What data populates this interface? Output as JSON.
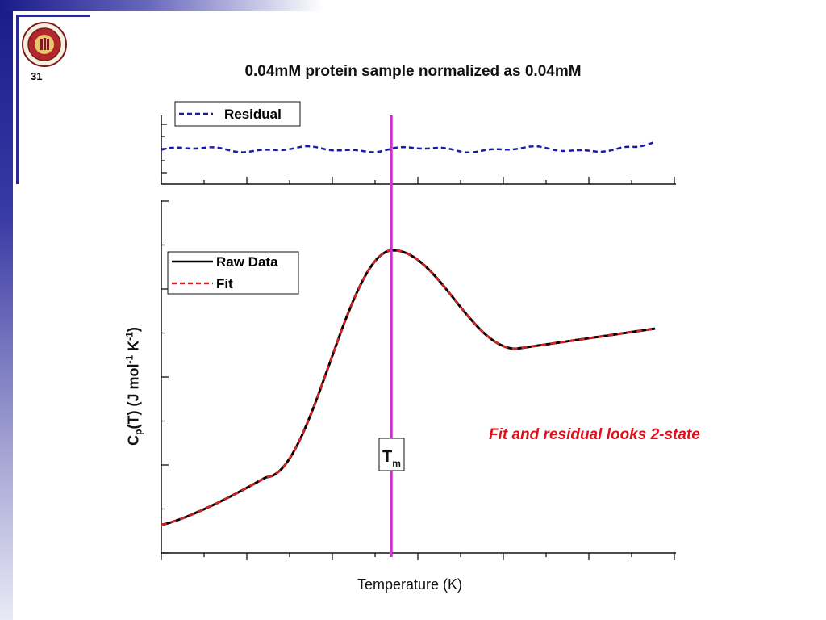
{
  "slide": {
    "number": "31",
    "note": "Fit and residual looks 2-state"
  },
  "colors": {
    "raw": "#000000",
    "fit": "#e02020",
    "residual": "#1a1aa8",
    "tm_line": "#cc33cc",
    "accent": "#2a2a90"
  },
  "chart_data": [
    {
      "type": "line",
      "panel": "top",
      "title": "0.04mM protein sample normalized as 0.04mM",
      "legend": {
        "placement": "top-left"
      },
      "series": [
        {
          "name": "Residual",
          "style": "dashed",
          "color": "#1a1aa8"
        }
      ]
    },
    {
      "type": "line",
      "panel": "main",
      "xlabel": "Temperature (K)",
      "ylabel": {
        "prefix": "C",
        "sub": "p",
        "middle": "(T) (J mol",
        "sup1": "-1",
        "mid2": " K",
        "sup2": "-1",
        "suffix": ")"
      },
      "legend": {
        "placement": "top-left"
      },
      "series": [
        {
          "name": "Raw Data",
          "style": "solid",
          "color": "#000000"
        },
        {
          "name": "Fit",
          "style": "dashed",
          "color": "#e02020"
        }
      ],
      "annotations": [
        {
          "label": "T",
          "sub": "m"
        }
      ]
    }
  ]
}
